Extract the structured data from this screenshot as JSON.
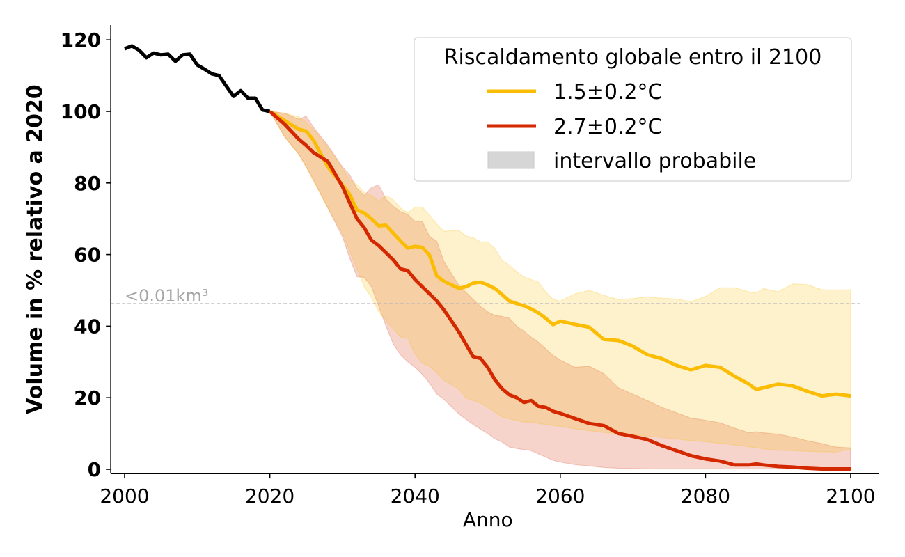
{
  "chart_data": {
    "type": "line",
    "title": "",
    "xlabel": "Anno",
    "ylabel": "Volume in % relativo a 2020",
    "xlim": [
      1998,
      2102
    ],
    "ylim": [
      -1,
      124
    ],
    "x_ticks": [
      2000,
      2020,
      2040,
      2060,
      2080,
      2100
    ],
    "y_ticks": [
      0,
      20,
      40,
      60,
      80,
      100,
      120
    ],
    "grid": false,
    "legend": {
      "title": "Riscaldamento globale entro il 2100",
      "placement": "top-right",
      "entries": [
        {
          "label": "1.5±0.2°C",
          "kind": "line",
          "color": "#fbbc04"
        },
        {
          "label": "2.7±0.2°C",
          "kind": "line",
          "color": "#d42800"
        },
        {
          "label": "intervallo probabile",
          "kind": "patch",
          "color": "#d6d6d6"
        }
      ]
    },
    "annotations": [
      {
        "text": "<0.01km³",
        "type": "hline",
        "y": 46.3,
        "color": "#b0b0b0",
        "style": "dashed"
      }
    ],
    "series": [
      {
        "name": "historical",
        "color": "#000000",
        "x": [
          2000,
          2001,
          2002,
          2003,
          2004,
          2005,
          2006,
          2007,
          2008,
          2009,
          2010,
          2011,
          2012,
          2013,
          2014,
          2015,
          2016,
          2017,
          2018,
          2019,
          2020
        ],
        "values": [
          117.5,
          118.3,
          117.1,
          115.0,
          116.3,
          115.8,
          116.0,
          114.0,
          115.8,
          116.0,
          113.0,
          111.8,
          110.5,
          110.0,
          107.1,
          104.2,
          105.8,
          103.7,
          103.7,
          100.4,
          100.0
        ]
      },
      {
        "name": "1.5±0.2°C",
        "color": "#fbbc04",
        "band_color": "#fdebb8",
        "x": [
          2020,
          2022,
          2024,
          2025,
          2026,
          2028,
          2030,
          2031,
          2032,
          2033,
          2034,
          2035,
          2036,
          2037,
          2038,
          2039,
          2040,
          2041,
          2042,
          2043,
          2044,
          2046,
          2047,
          2048,
          2049,
          2050,
          2051,
          2052,
          2053,
          2054,
          2055,
          2056,
          2057,
          2058,
          2059,
          2060,
          2062,
          2064,
          2066,
          2068,
          2070,
          2072,
          2074,
          2076,
          2078,
          2080,
          2082,
          2084,
          2086,
          2087,
          2088,
          2090,
          2092,
          2094,
          2096,
          2098,
          2100
        ],
        "values": [
          100,
          97.5,
          95,
          94.5,
          92,
          84.5,
          79.5,
          76.8,
          72.5,
          71.6,
          70,
          68,
          68.2,
          66,
          63.8,
          61.8,
          62.3,
          62,
          59.8,
          54,
          52.5,
          50.6,
          51,
          52,
          52.3,
          51.5,
          50.5,
          48.8,
          47,
          46.3,
          45.7,
          44.8,
          43.7,
          42.2,
          40.4,
          41.4,
          40.5,
          39.7,
          36.3,
          36,
          34.4,
          32,
          30.9,
          29,
          27.8,
          29,
          28.5,
          26,
          23.8,
          22.3,
          22.8,
          23.8,
          23.3,
          21.8,
          20.5,
          21,
          20.5
        ],
        "band_upper": [
          100,
          99.5,
          98.5,
          97,
          95,
          90,
          84,
          81,
          79.5,
          77.3,
          76.5,
          75,
          76.5,
          75.3,
          73,
          71.7,
          73.2,
          73.3,
          71,
          68.5,
          66.5,
          66.8,
          65.2,
          64.7,
          63.6,
          63.5,
          61.7,
          58.3,
          57,
          55.2,
          53.8,
          53,
          52.3,
          49.6,
          47.5,
          47,
          49,
          50,
          48.6,
          47.5,
          47.7,
          48.2,
          47.8,
          47.6,
          46.8,
          48.3,
          50.7,
          50.7,
          49.6,
          49.3,
          50.5,
          49.6,
          51.8,
          51.6,
          50.2,
          50.1,
          50.2
        ],
        "band_lower": [
          100,
          93,
          88,
          84.5,
          80.5,
          73,
          66,
          61,
          56,
          51,
          48,
          44,
          41.5,
          39.2,
          37,
          36.5,
          32.2,
          29.6,
          28.8,
          27,
          24.8,
          22.5,
          20,
          19.2,
          18.5,
          17.3,
          16,
          14.6,
          14.1,
          13.6,
          13.2,
          13.2,
          12.8,
          12.5,
          12.2,
          12,
          11.3,
          10.8,
          10.3,
          10,
          9.7,
          9.2,
          8.9,
          8.5,
          8.0,
          7.7,
          7.3,
          6.8,
          6.3,
          6.0,
          5.7,
          5.3,
          5.2,
          5.0,
          4.9,
          4.8,
          5.7
        ]
      },
      {
        "name": "2.7±0.2°C",
        "color": "#d42800",
        "band_color": "#f4c9c4",
        "x": [
          2020,
          2022,
          2024,
          2025,
          2026,
          2028,
          2030,
          2031,
          2032,
          2033,
          2034,
          2035,
          2036,
          2037,
          2038,
          2039,
          2040,
          2041,
          2042,
          2043,
          2044,
          2046,
          2047,
          2048,
          2049,
          2050,
          2051,
          2052,
          2053,
          2054,
          2055,
          2056,
          2057,
          2058,
          2059,
          2060,
          2062,
          2064,
          2066,
          2068,
          2070,
          2072,
          2074,
          2076,
          2078,
          2080,
          2082,
          2084,
          2086,
          2087,
          2088,
          2090,
          2092,
          2094,
          2096,
          2098,
          2100
        ],
        "values": [
          100,
          96.5,
          92.2,
          90.5,
          88.5,
          86,
          79,
          74.5,
          70,
          67.5,
          64,
          62.5,
          60.5,
          58.5,
          56,
          55.5,
          53,
          51,
          49,
          47,
          44.5,
          38.5,
          35,
          31.5,
          31,
          28.5,
          25,
          22.5,
          20.8,
          20,
          18.7,
          19.2,
          17.6,
          17.3,
          16.2,
          15.6,
          14.2,
          12.8,
          12.2,
          10,
          9.2,
          8.3,
          6.6,
          5.2,
          3.8,
          2.9,
          2.3,
          1.2,
          1.2,
          1.5,
          1.2,
          0.8,
          0.6,
          0.3,
          0.1,
          0.1,
          0.1
        ],
        "band_upper": [
          100,
          99.5,
          97.8,
          98.7,
          95.6,
          90.5,
          84.5,
          82.3,
          78.5,
          76.5,
          78.7,
          79.5,
          75.5,
          73.5,
          72,
          71.2,
          69.3,
          69.3,
          65,
          63.7,
          58,
          51.5,
          49.5,
          47.5,
          45.5,
          44,
          43,
          42.7,
          42.2,
          40,
          38.6,
          36.9,
          35.5,
          33.7,
          31.8,
          30.5,
          28.5,
          28.8,
          26.7,
          22.8,
          21,
          19.2,
          17.3,
          15.8,
          14.3,
          13.7,
          13,
          11.5,
          10.2,
          10.5,
          10.2,
          9.8,
          9.0,
          8.0,
          7.2,
          6.2,
          6.0
        ],
        "band_lower": [
          100,
          93,
          88,
          84.5,
          81,
          73,
          65,
          59,
          53.8,
          53.6,
          51,
          45.5,
          40,
          35,
          32,
          30,
          28.5,
          26.5,
          24,
          21,
          19.5,
          15.5,
          14,
          12.5,
          11.2,
          10,
          8.5,
          7.6,
          6.2,
          5.8,
          5.5,
          5.2,
          4.3,
          3.4,
          2.5,
          2,
          1.3,
          0.9,
          0.5,
          0.3,
          0.2,
          0.1,
          0.1,
          0.1,
          0.1,
          0.1,
          0.1,
          0.1,
          0.1,
          0.1,
          0.1,
          0.1,
          0.1,
          0.1,
          0.1,
          0.1,
          0.1
        ]
      }
    ]
  }
}
